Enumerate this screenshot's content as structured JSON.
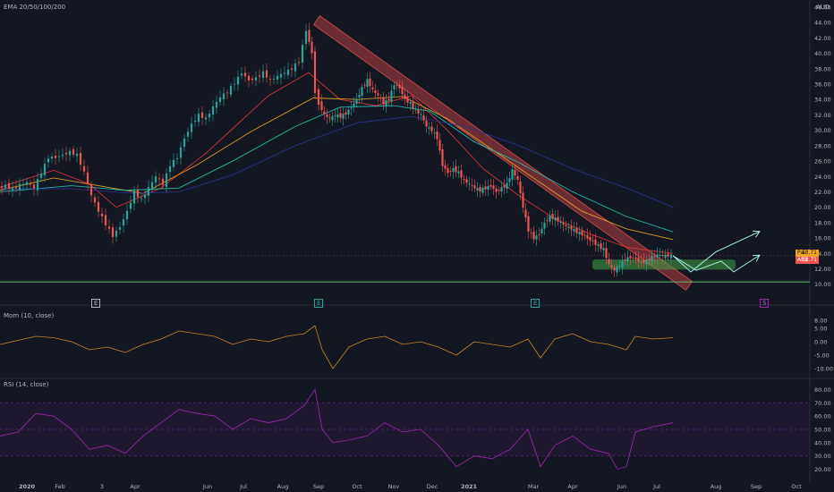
{
  "colors": {
    "background": "#131722",
    "candle_up": "#26a69a",
    "candle_down": "#ef5350",
    "ema20": "#e53935",
    "ema50": "#f5a623",
    "ema100": "#26c6b8",
    "ema200": "#283593",
    "momentum": "#c9862a",
    "rsi": "#9c27b0",
    "rsi_band": "#7b1fa2",
    "support": "#66bb6a",
    "channel": "#d84a4a",
    "projection": "#a5f3e6",
    "price_tag": "#f5a623",
    "apx_tag": "#ef5350"
  },
  "panes": {
    "price_title": "EMA 20/50/100/200",
    "currency": "AUD",
    "mom_title": "Mom (10, close)",
    "rsi_title": "RSI (14, close)"
  },
  "tags": {
    "pair_label": "Pair",
    "pair_value": "13.71",
    "apx_label": "APX",
    "apx_value": "13.71",
    "event_e": "E",
    "event_s": "S"
  },
  "chart_data": [
    {
      "type": "line",
      "title": "EMA 20/50/100/200",
      "ylabel": "AUD",
      "ylim": [
        9.5,
        46
      ],
      "yticks": [
        "46.00",
        "44.00",
        "42.00",
        "40.00",
        "38.00",
        "36.00",
        "34.00",
        "32.00",
        "30.00",
        "28.00",
        "26.00",
        "24.00",
        "22.00",
        "20.00",
        "18.00",
        "16.00",
        "14.00",
        "12.00",
        "10.00"
      ],
      "x_categories": [
        "2020",
        "Feb",
        "3",
        "Apr",
        "Jun",
        "Jul",
        "Aug",
        "Sep",
        "Oct",
        "Nov",
        "Dec",
        "2021",
        "Mar",
        "Apr",
        "Jun",
        "Jul",
        "Aug",
        "Sep",
        "Oct"
      ],
      "x_index": [
        0,
        67,
        114,
        151,
        232,
        272,
        316,
        356,
        399,
        440,
        483,
        524,
        596,
        640,
        695,
        734,
        800,
        845,
        890
      ],
      "series": [
        {
          "kind": "price",
          "x": [
            0,
            8,
            16,
            24,
            32,
            40,
            48,
            56,
            64,
            72,
            80,
            88,
            96,
            104,
            112,
            120,
            128,
            136,
            144,
            152,
            160,
            168,
            176,
            184,
            192,
            200,
            208,
            216,
            224,
            232,
            240,
            248,
            256,
            264,
            272,
            280,
            288,
            296,
            304,
            312,
            320,
            328,
            336,
            344,
            350,
            354,
            358,
            364,
            370,
            376,
            382,
            388,
            394,
            400,
            406,
            412,
            418,
            424,
            430,
            436,
            442,
            448,
            454,
            460,
            466,
            472,
            478,
            484,
            490,
            496,
            502,
            508,
            514,
            520,
            526,
            532,
            538,
            544,
            550,
            556,
            562,
            568,
            574,
            580,
            586,
            592,
            598,
            604,
            610,
            616,
            622,
            628,
            634,
            640,
            646,
            652,
            658,
            664,
            670,
            676,
            682,
            688,
            694,
            700,
            706,
            712,
            718,
            724,
            730,
            736,
            742,
            748,
            752
          ],
          "values": [
            22.5,
            22.8,
            22.3,
            22.9,
            23.2,
            22.5,
            24.5,
            26.5,
            26.5,
            26.8,
            27.2,
            26.8,
            24.5,
            21.5,
            19.5,
            17.8,
            16.3,
            17.5,
            19.5,
            22.0,
            21.0,
            22.5,
            24.0,
            23.0,
            25.5,
            26.5,
            29.0,
            30.8,
            32.0,
            31.5,
            33.0,
            34.3,
            35.0,
            36.2,
            37.5,
            36.5,
            36.8,
            37.5,
            36.5,
            37.0,
            37.5,
            38.0,
            39.0,
            43.0,
            40.0,
            35.0,
            33.5,
            32.0,
            31.5,
            32.0,
            31.8,
            32.2,
            33.0,
            34.0,
            35.5,
            36.5,
            35.2,
            34.5,
            33.5,
            34.0,
            36.0,
            35.5,
            34.0,
            33.5,
            32.5,
            32.0,
            30.5,
            30.0,
            29.0,
            25.5,
            24.5,
            25.0,
            24.5,
            23.5,
            23.0,
            22.5,
            22.2,
            22.5,
            22.8,
            22.0,
            22.5,
            23.0,
            24.8,
            23.5,
            20.0,
            17.0,
            16.0,
            16.5,
            18.0,
            18.8,
            18.5,
            18.0,
            17.5,
            17.2,
            16.8,
            16.5,
            16.0,
            15.5,
            15.0,
            14.5,
            12.5,
            11.8,
            12.5,
            13.2,
            13.5,
            13.3,
            12.8,
            13.0,
            13.5,
            13.8,
            13.7,
            13.71,
            13.71
          ]
        },
        {
          "name": "EMA 20",
          "x": [
            0,
            60,
            100,
            130,
            180,
            230,
            300,
            345,
            380,
            420,
            460,
            500,
            540,
            580,
            620,
            660,
            700,
            752
          ],
          "values": [
            22.6,
            24.8,
            23.0,
            20.0,
            22.5,
            27.0,
            34.5,
            37.5,
            34.0,
            33.2,
            34.5,
            30.0,
            25.0,
            21.5,
            18.5,
            16.5,
            14.8,
            14.0
          ]
        },
        {
          "name": "EMA 50",
          "x": [
            0,
            60,
            110,
            160,
            220,
            280,
            350,
            400,
            450,
            500,
            550,
            600,
            650,
            700,
            752
          ],
          "values": [
            22.2,
            23.8,
            22.8,
            21.8,
            25.5,
            29.8,
            34.2,
            34.0,
            34.4,
            31.5,
            27.5,
            23.5,
            19.5,
            17.2,
            15.8
          ]
        },
        {
          "name": "EMA 100",
          "x": [
            0,
            80,
            140,
            200,
            260,
            330,
            380,
            440,
            480,
            530,
            580,
            640,
            700,
            752
          ],
          "values": [
            22.0,
            22.8,
            22.2,
            22.5,
            26.0,
            30.5,
            33.0,
            33.2,
            32.5,
            28.5,
            25.8,
            22.0,
            18.8,
            16.8
          ]
        },
        {
          "name": "EMA 200",
          "x": [
            0,
            80,
            150,
            200,
            260,
            330,
            400,
            460,
            520,
            580,
            640,
            700,
            752
          ],
          "values": [
            22.4,
            22.4,
            21.8,
            22.0,
            24.2,
            28.0,
            31.0,
            31.8,
            30.5,
            28.0,
            25.0,
            22.5,
            20.0
          ]
        },
        {
          "name": "Projection 1",
          "x": [
            752,
            772,
            800,
            848
          ],
          "values": [
            13.7,
            11.6,
            14.2,
            16.8
          ]
        },
        {
          "name": "Projection 2",
          "x": [
            752,
            778,
            806,
            820,
            848
          ],
          "values": [
            13.7,
            11.8,
            13.0,
            11.6,
            13.7
          ]
        }
      ]
    },
    {
      "type": "line",
      "title": "Mom (10, close)",
      "ylim": [
        -12,
        12
      ],
      "yticks": [
        "8.00",
        "5.00",
        "0.00",
        "-5.00",
        "-10.00"
      ],
      "series": [
        {
          "kind": "momentum",
          "x": [
            0,
            20,
            40,
            60,
            80,
            100,
            120,
            140,
            160,
            180,
            200,
            220,
            240,
            260,
            280,
            300,
            320,
            340,
            352,
            360,
            372,
            390,
            410,
            430,
            450,
            470,
            490,
            510,
            530,
            550,
            570,
            590,
            604,
            620,
            640,
            660,
            680,
            700,
            710,
            730,
            752
          ],
          "values": [
            -1,
            0.5,
            2,
            1.5,
            0,
            -3,
            -2,
            -4,
            -1,
            1,
            4,
            3,
            2,
            -1,
            1,
            0,
            2,
            3,
            6,
            -3,
            -10,
            -2,
            1,
            2,
            -1,
            0,
            -2,
            -5,
            0,
            -1,
            -2,
            1,
            -6,
            1,
            3,
            0,
            -1,
            -3,
            2,
            1,
            1.5
          ]
        }
      ]
    },
    {
      "type": "line",
      "title": "RSI (14, close)",
      "ylim": [
        15,
        85
      ],
      "yticks": [
        "80.00",
        "70.00",
        "60.00",
        "50.00",
        "40.00",
        "30.00",
        "20.00"
      ],
      "bands": [
        30,
        50,
        70
      ],
      "series": [
        {
          "kind": "rsi",
          "x": [
            0,
            20,
            40,
            60,
            80,
            100,
            120,
            140,
            160,
            180,
            200,
            220,
            240,
            260,
            280,
            300,
            320,
            340,
            352,
            360,
            372,
            390,
            410,
            430,
            450,
            470,
            490,
            510,
            530,
            550,
            570,
            590,
            604,
            620,
            640,
            660,
            680,
            690,
            700,
            710,
            730,
            752
          ],
          "values": [
            45,
            48,
            62,
            60,
            50,
            35,
            38,
            32,
            45,
            55,
            65,
            62,
            60,
            50,
            58,
            55,
            58,
            68,
            80,
            50,
            40,
            42,
            45,
            55,
            48,
            50,
            38,
            22,
            30,
            28,
            35,
            50,
            22,
            38,
            45,
            35,
            32,
            20,
            22,
            48,
            52,
            55
          ]
        }
      ]
    }
  ]
}
